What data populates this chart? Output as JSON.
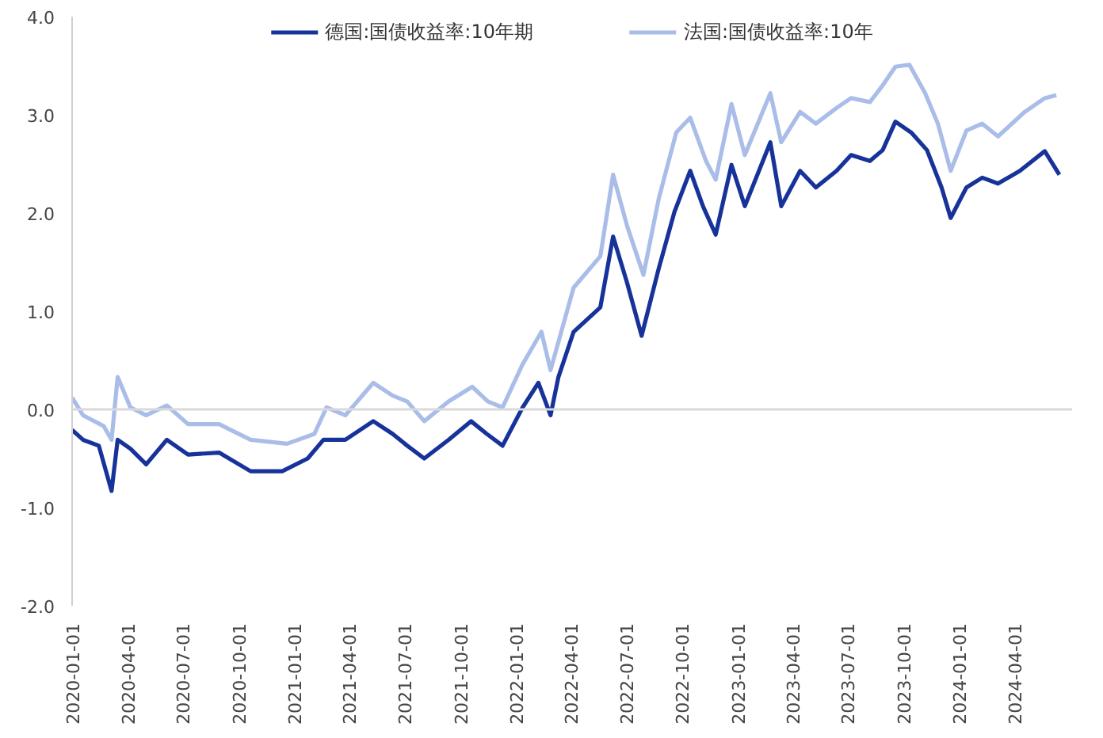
{
  "chart_data": {
    "type": "line",
    "xlim": [
      "2020-01-01",
      "2024-07-05"
    ],
    "xticks": [
      "2020-01-01",
      "2020-04-01",
      "2020-07-01",
      "2020-10-01",
      "2021-01-01",
      "2021-04-01",
      "2021-07-01",
      "2021-10-01",
      "2022-01-01",
      "2022-04-01",
      "2022-07-01",
      "2022-10-01",
      "2023-01-01",
      "2023-04-01",
      "2023-07-01",
      "2023-10-01",
      "2024-01-01",
      "2024-04-01"
    ],
    "ylim": [
      -2,
      4
    ],
    "yticks": [
      {
        "value": -2,
        "label": "-2.0"
      },
      {
        "value": -1,
        "label": "-1.0"
      },
      {
        "value": 0,
        "label": "0.0"
      },
      {
        "value": 1,
        "label": "1.0"
      },
      {
        "value": 2,
        "label": "2.0"
      },
      {
        "value": 3,
        "label": "3.0"
      },
      {
        "value": 4,
        "label": "4.0"
      }
    ],
    "grid": false,
    "legend": "top",
    "ref_lines": [
      {
        "axis": "y",
        "value": 0,
        "color": "#d9d9d9"
      }
    ],
    "series": [
      {
        "name": "德国:国债收益率:10年期",
        "color": "#17339a",
        "x": [
          "2020-01-01",
          "2020-01-19",
          "2020-02-14",
          "2020-03-06",
          "2020-03-16",
          "2020-04-06",
          "2020-05-02",
          "2020-06-05",
          "2020-07-10",
          "2020-08-30",
          "2020-10-21",
          "2020-12-12",
          "2021-01-23",
          "2021-02-18",
          "2021-03-26",
          "2021-05-11",
          "2021-06-12",
          "2021-07-06",
          "2021-08-03",
          "2021-09-12",
          "2021-10-19",
          "2021-11-14",
          "2021-12-10",
          "2022-01-12",
          "2022-02-07",
          "2022-02-27",
          "2022-03-12",
          "2022-04-06",
          "2022-05-20",
          "2022-06-10",
          "2022-07-03",
          "2022-07-27",
          "2022-08-24",
          "2022-09-19",
          "2022-10-15",
          "2022-11-05",
          "2022-11-26",
          "2022-12-22",
          "2023-01-13",
          "2023-02-24",
          "2023-03-14",
          "2023-04-14",
          "2023-05-10",
          "2023-06-13",
          "2023-07-07",
          "2023-08-07",
          "2023-08-28",
          "2023-09-18",
          "2023-10-14",
          "2023-11-09",
          "2023-12-03",
          "2023-12-18",
          "2024-01-13",
          "2024-02-08",
          "2024-03-05",
          "2024-04-10",
          "2024-05-21",
          "2024-06-14"
        ],
        "values": [
          -0.21,
          -0.31,
          -0.37,
          -0.83,
          -0.31,
          -0.4,
          -0.56,
          -0.31,
          -0.46,
          -0.44,
          -0.63,
          -0.63,
          -0.5,
          -0.31,
          -0.31,
          -0.12,
          -0.25,
          -0.37,
          -0.5,
          -0.31,
          -0.12,
          -0.25,
          -0.37,
          0.02,
          0.27,
          -0.06,
          0.33,
          0.79,
          1.04,
          1.76,
          1.29,
          0.75,
          1.43,
          2.01,
          2.43,
          2.07,
          1.78,
          2.49,
          2.07,
          2.72,
          2.07,
          2.43,
          2.26,
          2.43,
          2.59,
          2.53,
          2.64,
          2.93,
          2.82,
          2.64,
          2.26,
          1.95,
          2.26,
          2.36,
          2.3,
          2.43,
          2.63,
          2.39
        ]
      },
      {
        "name": "法国:国债收益率:10年",
        "color": "#a9bde8",
        "x": [
          "2020-01-01",
          "2020-01-19",
          "2020-02-22",
          "2020-03-06",
          "2020-03-16",
          "2020-04-06",
          "2020-05-02",
          "2020-06-05",
          "2020-07-10",
          "2020-08-30",
          "2020-10-21",
          "2020-12-20",
          "2021-02-03",
          "2021-02-23",
          "2021-03-26",
          "2021-05-11",
          "2021-06-12",
          "2021-07-06",
          "2021-08-03",
          "2021-09-12",
          "2021-10-21",
          "2021-11-16",
          "2021-12-10",
          "2022-01-12",
          "2022-02-12",
          "2022-02-27",
          "2022-04-06",
          "2022-05-20",
          "2022-06-10",
          "2022-07-03",
          "2022-07-30",
          "2022-08-24",
          "2022-09-22",
          "2022-10-15",
          "2022-11-10",
          "2022-11-26",
          "2022-12-22",
          "2023-01-13",
          "2023-02-24",
          "2023-03-14",
          "2023-04-14",
          "2023-05-10",
          "2023-06-13",
          "2023-07-07",
          "2023-08-07",
          "2023-08-28",
          "2023-09-18",
          "2023-10-11",
          "2023-11-06",
          "2023-11-27",
          "2023-12-18",
          "2024-01-13",
          "2024-02-08",
          "2024-03-05",
          "2024-04-18",
          "2024-05-21",
          "2024-06-09"
        ],
        "values": [
          0.12,
          -0.06,
          -0.17,
          -0.31,
          0.33,
          0.02,
          -0.06,
          0.04,
          -0.15,
          -0.15,
          -0.31,
          -0.35,
          -0.25,
          0.02,
          -0.06,
          0.27,
          0.14,
          0.08,
          -0.12,
          0.08,
          0.23,
          0.08,
          0.02,
          0.46,
          0.79,
          0.4,
          1.24,
          1.56,
          2.39,
          1.87,
          1.37,
          2.14,
          2.82,
          2.97,
          2.53,
          2.34,
          3.11,
          2.59,
          3.22,
          2.72,
          3.03,
          2.91,
          3.07,
          3.17,
          3.13,
          3.3,
          3.49,
          3.51,
          3.22,
          2.91,
          2.43,
          2.84,
          2.91,
          2.78,
          3.03,
          3.17,
          3.2
        ]
      }
    ]
  }
}
